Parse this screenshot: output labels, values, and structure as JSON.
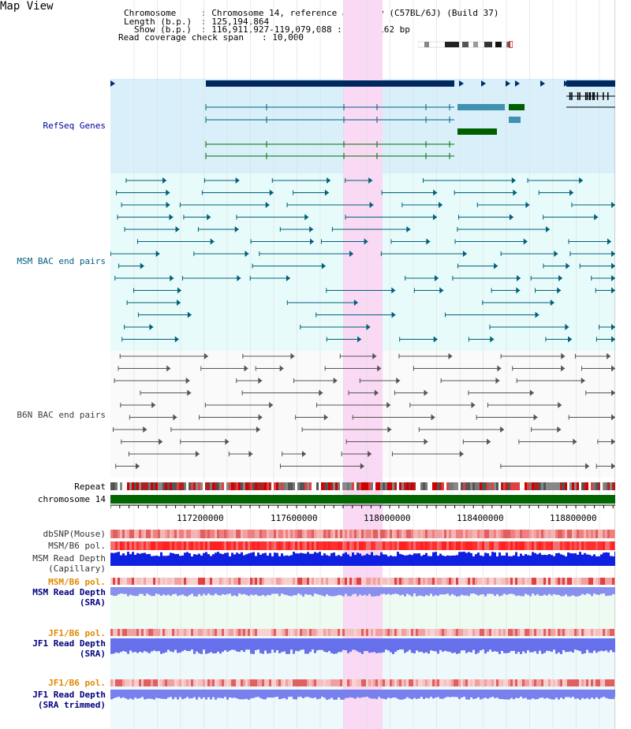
{
  "page": {
    "title": "Map View"
  },
  "header": {
    "chromosome_key": "Chromosome",
    "chromosome_value": ": Chromosome 14, reference assembly (C57BL/6J) (Build 37)",
    "length_key": "Length (b.p.)",
    "length_value": ": 125,194,864",
    "show_key": "Show (b.p.)",
    "show_value": ": 116,911,927-119,079,088 : 2,167,162 bp",
    "coverage_key": "Read coverage check span",
    "coverage_value": ": 10,000"
  },
  "tracks": {
    "refseq": "RefSeq Genes",
    "msm_bac": "MSM BAC end pairs",
    "b6n_bac": "B6N BAC end pairs",
    "repeat": "Repeat",
    "chromosome": "chromosome 14",
    "dbsnp": "dbSNP(Mouse)",
    "msm_b6_pol": "MSM/B6 pol.",
    "msm_depth_cap_1": "MSM Read Depth",
    "msm_depth_cap_2": "(Capillary)",
    "msm_b6_pol2": "MSM/B6 pol.",
    "msm_depth_sra_1": "MSM Read Depth",
    "msm_depth_sra_2": "(SRA)",
    "jf1_b6_pol": "JF1/B6 pol.",
    "jf1_depth_sra_1": "JF1 Read Depth",
    "jf1_depth_sra_2": "(SRA)",
    "jf1_b6_pol2": "JF1/B6 pol.",
    "jf1_depth_trim_1": "JF1 Read Depth",
    "jf1_depth_trim_2": "(SRA trimmed)"
  },
  "axis": {
    "ticks": [
      "117200000",
      "117600000",
      "118000000",
      "118400000",
      "118800000"
    ]
  },
  "colors": {
    "refseq_bg": "#d9eff9",
    "bac_bg": "#e8fbfb",
    "highlight": "#f9d9f3",
    "refseq_label": "#0000a0",
    "msm_label": "#006080",
    "b6n_label": "#404040",
    "pol_orange": "#e08800",
    "depth_blue": "#000080"
  }
}
